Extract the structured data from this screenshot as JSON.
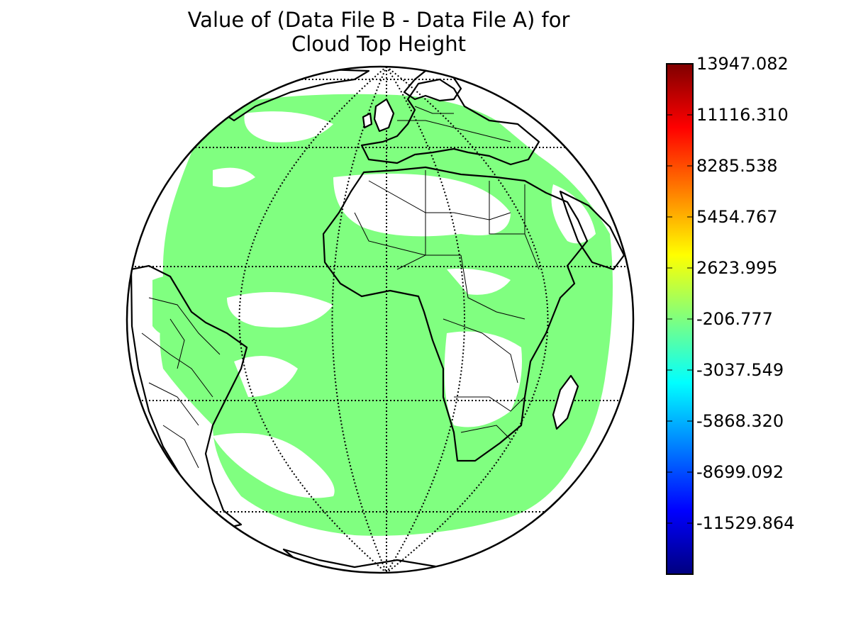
{
  "title_lines": [
    "Value of (Data File B - Data File A) for",
    "Cloud Top Height"
  ],
  "colorbar": {
    "colormap": "jet",
    "min": -14360.635,
    "max": 13947.082,
    "tick_labels": [
      "13947.082",
      "11116.310",
      "8285.538",
      "5454.767",
      "2623.995",
      "-206.777",
      "-3037.549",
      "-5868.320",
      "-8699.092",
      "-11529.864"
    ],
    "tick_values": [
      13947.082,
      11116.31,
      8285.538,
      5454.767,
      2623.995,
      -206.777,
      -3037.549,
      -5868.32,
      -8699.092,
      -11529.864
    ],
    "colors": [
      "#00007f",
      "#0000ff",
      "#007fff",
      "#00ffff",
      "#7fff7f",
      "#ffff00",
      "#ff7f00",
      "#ff0000",
      "#7f0000"
    ]
  },
  "map": {
    "projection": "orthographic",
    "data_color": "#80ff80",
    "graticule": "dotted",
    "features": [
      "coastlines",
      "country borders"
    ]
  }
}
